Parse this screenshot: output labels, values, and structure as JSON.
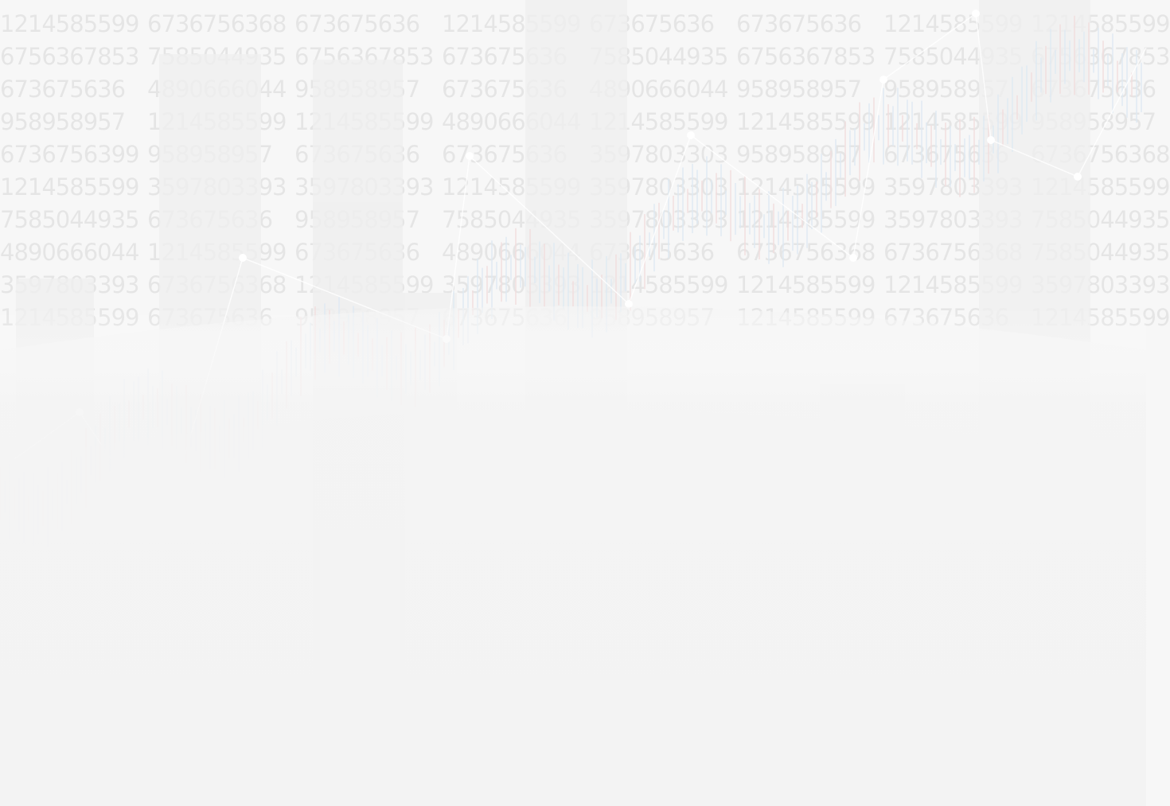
{
  "numbers": {
    "rows": [
      [
        "1214585599",
        "6736756368",
        "673675636",
        "1214585599",
        "673675636",
        "673675636",
        "1214585599",
        "1214585599"
      ],
      [
        "6756367853",
        "7585044935",
        "6756367853",
        "673675636",
        "7585044935",
        "6756367853",
        "7585044935",
        "6756367853"
      ],
      [
        "673675636",
        "4890666044",
        "958958957",
        "673675636",
        "4890666044",
        "958958957",
        "958958957",
        "673675636"
      ],
      [
        "958958957",
        "1214585599",
        "1214585599",
        "4890666044",
        "1214585599",
        "1214585599",
        "1214585599",
        "958958957"
      ],
      [
        "6736756399",
        "958958957",
        "673675636",
        "673675636",
        "3597803303",
        "958958957",
        "673675636",
        "6736756368"
      ],
      [
        "1214585599",
        "3597803393",
        "3597803393",
        "1214585599",
        "3597803303",
        "1214585599",
        "3597803393",
        "1214585599"
      ],
      [
        "7585044935",
        "673675636",
        "958958957",
        "7585044935",
        "3597803393",
        "1214585599",
        "3597803393",
        "7585044935"
      ],
      [
        "4890666044",
        "1214585599",
        "673675636",
        "4890666044",
        "673675636",
        "6736756368",
        "6736756368",
        "7585044935"
      ],
      [
        "3597803393",
        "6736756368",
        "1214585599",
        "3597803393",
        "1214585599",
        "1214585599",
        "1214585599",
        "3597803393"
      ],
      [
        "1214585599",
        "673675636",
        "958958957",
        "673675636",
        "958958957",
        "1214585599",
        "673675636",
        "1214585599"
      ]
    ]
  }
}
